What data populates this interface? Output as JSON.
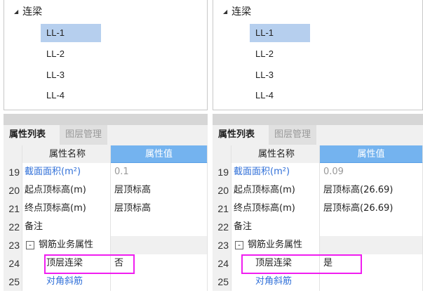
{
  "panels": [
    {
      "tree": {
        "root": "连梁",
        "items": [
          "LL-1",
          "LL-2",
          "LL-3",
          "LL-4"
        ],
        "selected": "LL-1"
      },
      "tabs": {
        "active": "属性列表",
        "inactive": "图层管理"
      },
      "header": {
        "name": "属性名称",
        "value": "属性值"
      },
      "rows": [
        {
          "num": "19",
          "name": "截面面积(m²)",
          "value": "0.1"
        },
        {
          "num": "20",
          "name": "起点顶标高(m)",
          "value": "层顶标高"
        },
        {
          "num": "21",
          "name": "终点顶标高(m)",
          "value": "层顶标高"
        },
        {
          "num": "22",
          "name": "备注",
          "value": ""
        },
        {
          "num": "23",
          "name": "钢筋业务属性",
          "value": "",
          "collapse": "-"
        },
        {
          "num": "24",
          "name": "顶层连梁",
          "value": "否"
        },
        {
          "num": "25",
          "name": "对角斜筋",
          "value": ""
        }
      ]
    },
    {
      "tree": {
        "root": "连梁",
        "items": [
          "LL-1",
          "LL-2",
          "LL-3",
          "LL-4"
        ],
        "selected": "LL-1"
      },
      "tabs": {
        "active": "属性列表",
        "inactive": "图层管理"
      },
      "header": {
        "name": "属性名称",
        "value": "属性值"
      },
      "rows": [
        {
          "num": "19",
          "name": "截面面积(m²)",
          "value": "0.09"
        },
        {
          "num": "20",
          "name": "起点顶标高(m)",
          "value": "层顶标高(26.69)"
        },
        {
          "num": "21",
          "name": "终点顶标高(m)",
          "value": "层顶标高(26.69)"
        },
        {
          "num": "22",
          "name": "备注",
          "value": ""
        },
        {
          "num": "23",
          "name": "钢筋业务属性",
          "value": "",
          "collapse": "-"
        },
        {
          "num": "24",
          "name": "顶层连梁",
          "value": "是"
        },
        {
          "num": "25",
          "name": "对角斜筋",
          "value": ""
        }
      ]
    }
  ],
  "colors": {
    "selection": "#b6cfee",
    "header_accent": "#74b3ef",
    "highlight": "#f01ef0",
    "link_blue": "#2f6fd8"
  }
}
